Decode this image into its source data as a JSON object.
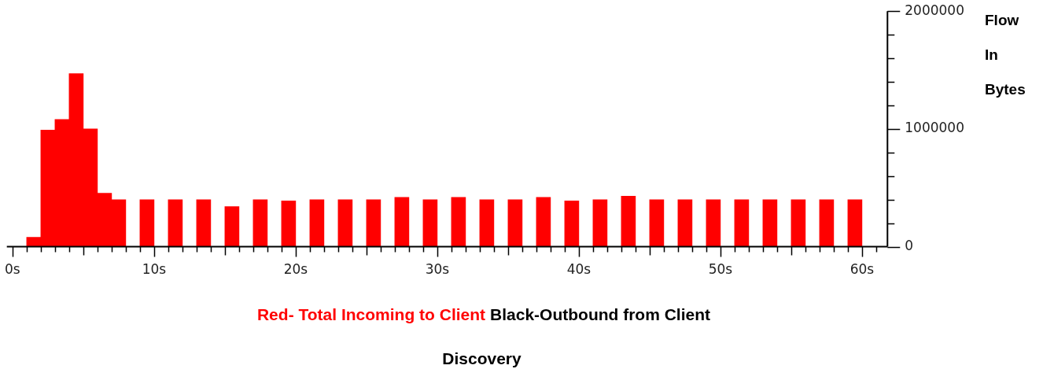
{
  "chart_data": {
    "type": "histogram",
    "ylabel": "Flow In Bytes",
    "annotations": [
      "Discovery"
    ],
    "bins": [
      1,
      2,
      3,
      4,
      5,
      6,
      7,
      8,
      9,
      10,
      11,
      12,
      13,
      14,
      15,
      16,
      17,
      18,
      19,
      20,
      21,
      22,
      23,
      24,
      25,
      26,
      27,
      28,
      29,
      30,
      31,
      32,
      33,
      34,
      35,
      36,
      37,
      38,
      39,
      40,
      41,
      42,
      43,
      44,
      45,
      46,
      47,
      48,
      49,
      50,
      51,
      52,
      53,
      54,
      55,
      56,
      57,
      58,
      59,
      60
    ],
    "series": [
      {
        "name": "Red- Total Incoming to Client",
        "color": "#ff0000",
        "values": [
          80000,
          990000,
          1080000,
          1470000,
          1000000,
          455000,
          400000,
          0,
          400000,
          0,
          400000,
          0,
          400000,
          0,
          340000,
          0,
          400000,
          0,
          390000,
          0,
          400000,
          0,
          400000,
          0,
          400000,
          0,
          420000,
          0,
          400000,
          0,
          420000,
          0,
          400000,
          0,
          400000,
          0,
          420000,
          0,
          390000,
          0,
          400000,
          0,
          430000,
          0,
          400000,
          0,
          400000,
          0,
          400000,
          0,
          400000,
          0,
          400000,
          0,
          400000,
          0,
          400000,
          0,
          400000
        ]
      },
      {
        "name": "Black-Outbound from Client",
        "color": "#000000",
        "values": [
          null,
          10000,
          10000,
          10000,
          10000,
          null,
          null,
          null,
          null,
          null,
          null,
          null,
          null,
          null,
          null,
          null,
          null,
          null,
          null,
          null,
          null,
          null,
          null,
          null,
          null,
          null,
          null,
          null,
          null,
          null,
          null,
          null,
          null,
          null,
          null,
          null,
          null,
          null,
          null,
          null,
          null,
          null,
          null,
          null,
          null,
          null,
          null,
          null,
          null,
          null,
          null,
          null,
          null,
          null,
          null,
          null,
          null,
          null,
          null
        ]
      }
    ],
    "xlim": [
      -0.4,
      61.8
    ],
    "xticks": [
      {
        "value": 0,
        "label": "0s"
      },
      {
        "value": 1,
        "label": null
      },
      {
        "value": 2,
        "label": null
      },
      {
        "value": 3,
        "label": null
      },
      {
        "value": 4,
        "label": null
      },
      {
        "value": 5,
        "label": null
      },
      {
        "value": 6,
        "label": null
      },
      {
        "value": 7,
        "label": null
      },
      {
        "value": 8,
        "label": null
      },
      {
        "value": 9,
        "label": null
      },
      {
        "value": 10,
        "label": "10s"
      },
      {
        "value": 11,
        "label": null
      },
      {
        "value": 12,
        "label": null
      },
      {
        "value": 13,
        "label": null
      },
      {
        "value": 14,
        "label": null
      },
      {
        "value": 15,
        "label": null
      },
      {
        "value": 16,
        "label": null
      },
      {
        "value": 17,
        "label": null
      },
      {
        "value": 18,
        "label": null
      },
      {
        "value": 19,
        "label": null
      },
      {
        "value": 20,
        "label": "20s"
      },
      {
        "value": 21,
        "label": null
      },
      {
        "value": 22,
        "label": null
      },
      {
        "value": 23,
        "label": null
      },
      {
        "value": 24,
        "label": null
      },
      {
        "value": 25,
        "label": null
      },
      {
        "value": 26,
        "label": null
      },
      {
        "value": 27,
        "label": null
      },
      {
        "value": 28,
        "label": null
      },
      {
        "value": 29,
        "label": null
      },
      {
        "value": 30,
        "label": "30s"
      },
      {
        "value": 31,
        "label": null
      },
      {
        "value": 32,
        "label": null
      },
      {
        "value": 33,
        "label": null
      },
      {
        "value": 34,
        "label": null
      },
      {
        "value": 35,
        "label": null
      },
      {
        "value": 36,
        "label": null
      },
      {
        "value": 37,
        "label": null
      },
      {
        "value": 38,
        "label": null
      },
      {
        "value": 39,
        "label": null
      },
      {
        "value": 40,
        "label": "40s"
      },
      {
        "value": 41,
        "label": null
      },
      {
        "value": 42,
        "label": null
      },
      {
        "value": 43,
        "label": null
      },
      {
        "value": 44,
        "label": null
      },
      {
        "value": 45,
        "label": null
      },
      {
        "value": 46,
        "label": null
      },
      {
        "value": 47,
        "label": null
      },
      {
        "value": 48,
        "label": null
      },
      {
        "value": 49,
        "label": null
      },
      {
        "value": 50,
        "label": "50s"
      },
      {
        "value": 51,
        "label": null
      },
      {
        "value": 52,
        "label": null
      },
      {
        "value": 53,
        "label": null
      },
      {
        "value": 54,
        "label": null
      },
      {
        "value": 55,
        "label": null
      },
      {
        "value": 56,
        "label": null
      },
      {
        "value": 57,
        "label": null
      },
      {
        "value": 58,
        "label": null
      },
      {
        "value": 59,
        "label": null
      },
      {
        "value": 60,
        "label": "60s"
      },
      {
        "value": 61,
        "label": null
      }
    ],
    "ylim": [
      0,
      2000000
    ],
    "yticks": [
      0,
      {
        "value": 200000,
        "label": null
      },
      {
        "value": 400000,
        "label": null
      },
      {
        "value": 600000,
        "label": null
      },
      {
        "value": 800000,
        "label": null
      },
      1000000,
      {
        "value": 1200000,
        "label": null
      },
      {
        "value": 1400000,
        "label": null
      },
      {
        "value": 1600000,
        "label": null
      },
      {
        "value": 1800000,
        "label": null
      },
      2000000
    ],
    "legend": "bottom"
  }
}
